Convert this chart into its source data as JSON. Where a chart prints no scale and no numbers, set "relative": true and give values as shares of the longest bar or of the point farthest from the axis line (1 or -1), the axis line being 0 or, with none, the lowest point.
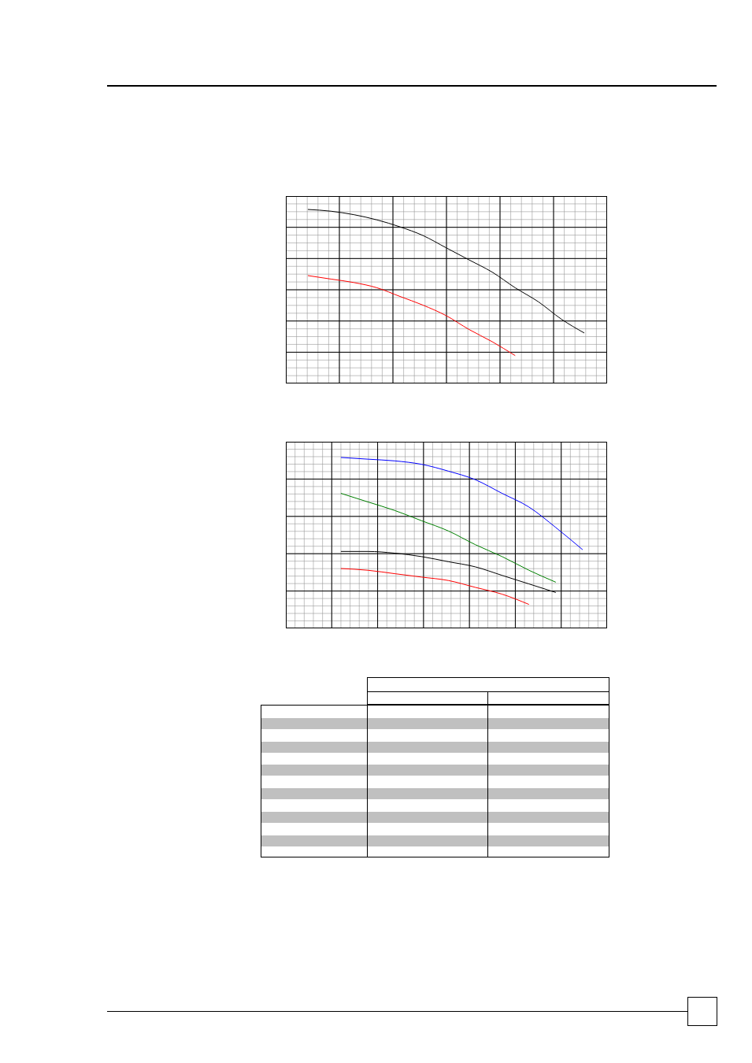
{
  "chart_data": [
    {
      "type": "line",
      "relative": true,
      "grid": true,
      "tick_labels": false,
      "legend": false,
      "marker": "none",
      "line_style": "solid",
      "categories": [
        null,
        null,
        null,
        null,
        null,
        null,
        null,
        null,
        null,
        null,
        null,
        null,
        null
      ],
      "series": [
        {
          "color": "#000000",
          "values": [
            1,
            0.99,
            0.97,
            0.94,
            0.9,
            0.85,
            0.78,
            0.71,
            0.64,
            0.55,
            0.47,
            0.37,
            0.29
          ]
        },
        {
          "color": "#ff0000",
          "values": [
            0.62,
            0.6,
            0.58,
            0.55,
            0.5,
            0.45,
            0.39,
            0.31,
            0.24,
            0.16,
            null,
            null,
            null
          ]
        }
      ]
    },
    {
      "type": "line",
      "relative": true,
      "grid": true,
      "tick_labels": false,
      "legend": false,
      "marker": "none",
      "line_style": "solid",
      "categories": [
        null,
        null,
        null,
        null,
        null,
        null,
        null,
        null,
        null,
        null
      ],
      "series": [
        {
          "color": "#0000ff",
          "values": [
            1,
            0.99,
            0.98,
            0.96,
            0.92,
            0.87,
            0.79,
            0.71,
            0.59,
            0.46
          ]
        },
        {
          "color": "#008000",
          "values": [
            0.79,
            0.74,
            0.69,
            0.63,
            0.57,
            0.49,
            0.42,
            0.34,
            0.27,
            null
          ]
        },
        {
          "color": "#000000",
          "values": [
            0.45,
            0.45,
            0.44,
            0.42,
            0.39,
            0.36,
            0.31,
            0.26,
            0.21,
            null
          ]
        },
        {
          "color": "#ff0000",
          "values": [
            0.35,
            0.34,
            0.32,
            0.3,
            0.28,
            0.24,
            0.2,
            0.14,
            null,
            null
          ]
        }
      ]
    }
  ]
}
